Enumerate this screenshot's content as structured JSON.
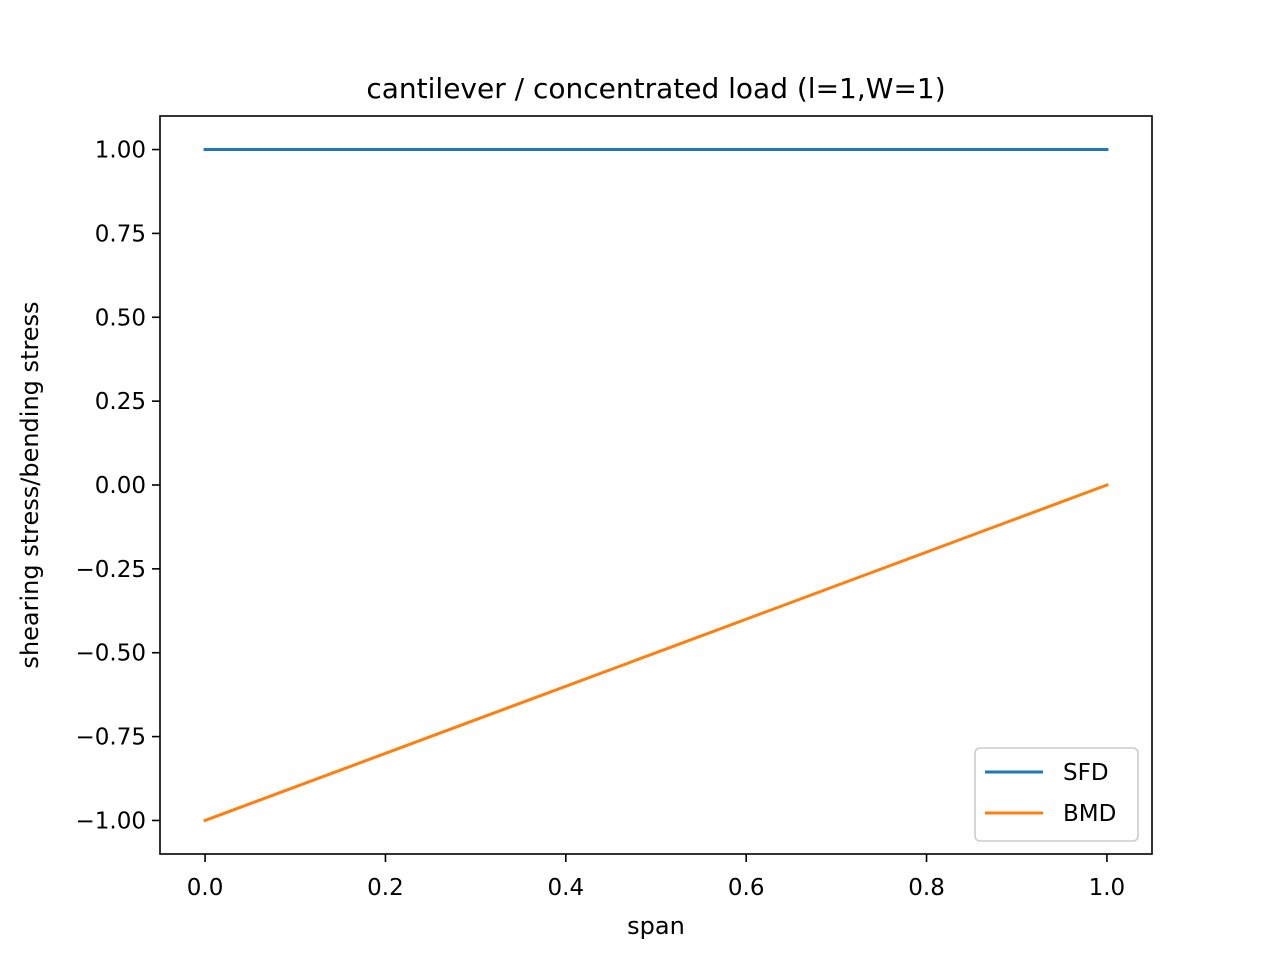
{
  "chart_data": {
    "type": "line",
    "title": "cantilever / concentrated load (l=1,W=1)",
    "xlabel": "span",
    "ylabel": "shearing stress/bending stress",
    "xlim": [
      -0.05,
      1.05
    ],
    "ylim": [
      -1.1,
      1.1
    ],
    "xticks": [
      0.0,
      0.2,
      0.4,
      0.6,
      0.8,
      1.0
    ],
    "xtick_labels": [
      "0.0",
      "0.2",
      "0.4",
      "0.6",
      "0.8",
      "1.0"
    ],
    "yticks": [
      1.0,
      0.75,
      0.5,
      0.25,
      0.0,
      -0.25,
      -0.5,
      -0.75,
      -1.0
    ],
    "ytick_labels": [
      "1.00",
      "0.75",
      "0.50",
      "0.25",
      "0.00",
      "−0.25",
      "−0.50",
      "−0.75",
      "−1.00"
    ],
    "grid": false,
    "legend_position": "lower-right",
    "series": [
      {
        "name": "SFD",
        "color": "#1f77b4",
        "x": [
          0.0,
          1.0
        ],
        "y": [
          1.0,
          1.0
        ]
      },
      {
        "name": "BMD",
        "color": "#ff7f0e",
        "x": [
          0.0,
          1.0
        ],
        "y": [
          -1.0,
          0.0
        ]
      }
    ]
  }
}
